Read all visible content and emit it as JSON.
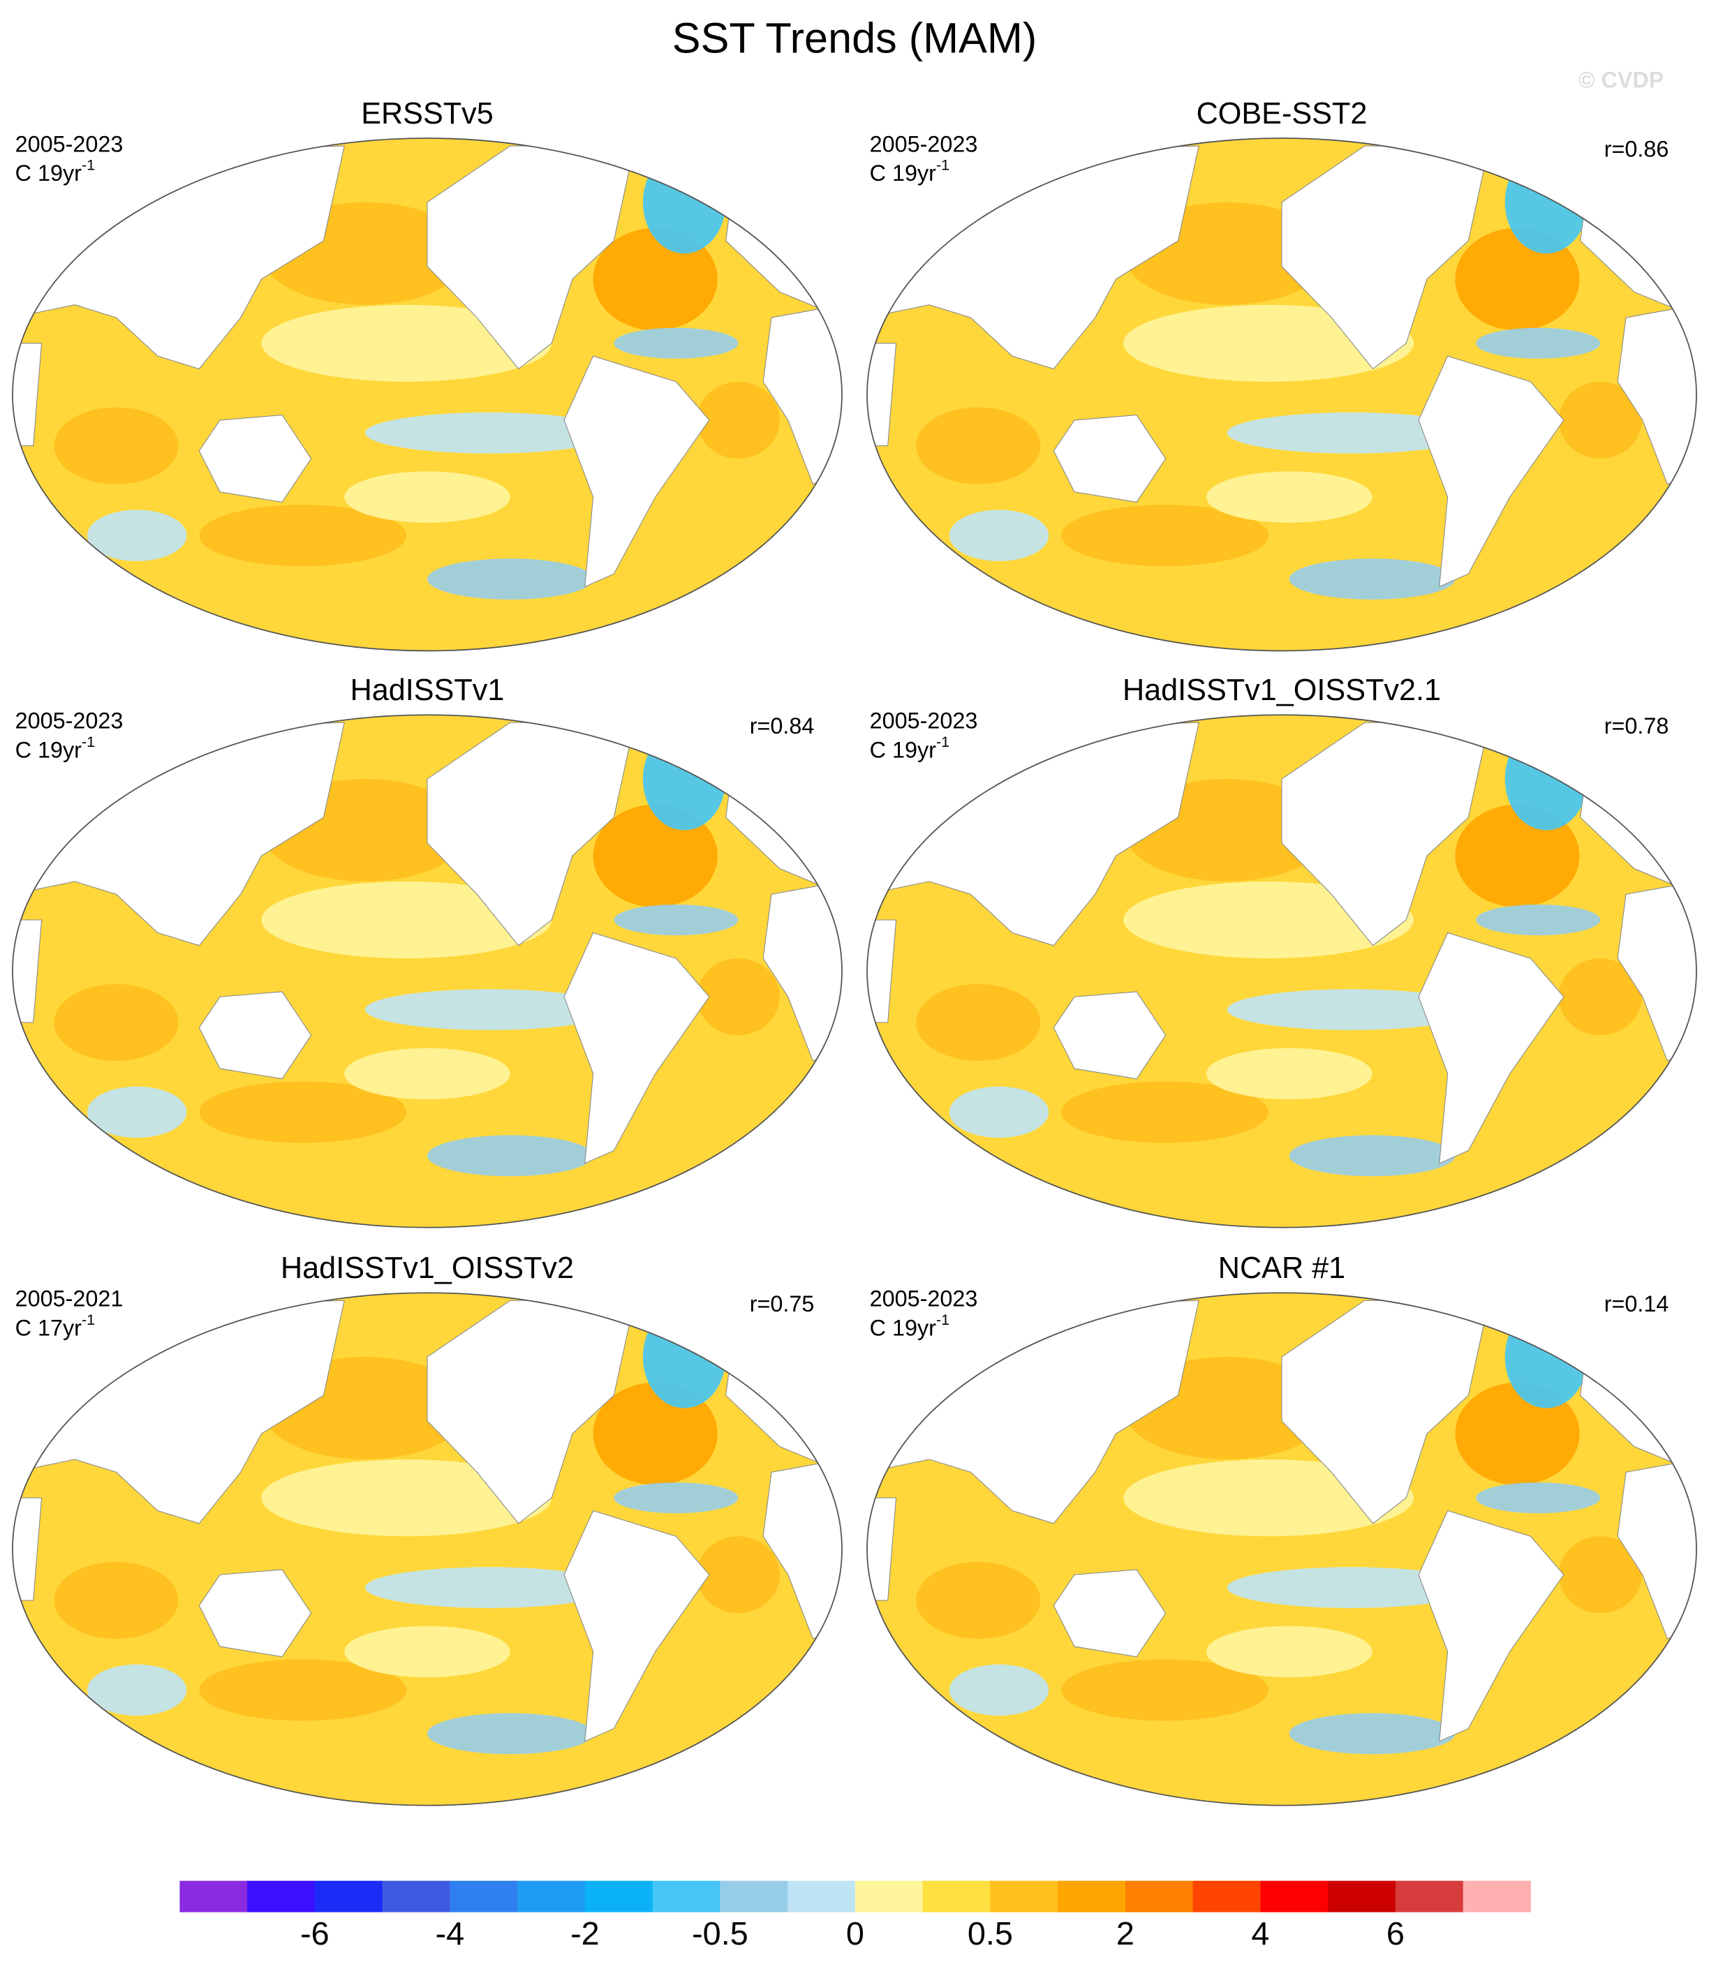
{
  "title": "SST Trends (MAM)",
  "watermark": "© CVDP",
  "panels": [
    {
      "title": "ERSSTv5",
      "period": "2005-2023",
      "units": "C 19yr",
      "units_exponent": "-1"
    },
    {
      "title": "COBE-SST2",
      "period": "2005-2023",
      "units": "C 19yr",
      "units_exponent": "-1",
      "r": "r=0.86"
    },
    {
      "title": "HadISSTv1",
      "period": "2005-2023",
      "units": "C 19yr",
      "units_exponent": "-1",
      "r": "r=0.84"
    },
    {
      "title": "HadISSTv1_OISSTv2.1",
      "period": "2005-2023",
      "units": "C 19yr",
      "units_exponent": "-1",
      "r": "r=0.78"
    },
    {
      "title": "HadISSTv1_OISSTv2",
      "period": "2005-2021",
      "units": "C 17yr",
      "units_exponent": "-1",
      "r": "r=0.75"
    },
    {
      "title": "NCAR #1",
      "period": "2005-2023",
      "units": "C 19yr",
      "units_exponent": "-1",
      "r": "r=0.14"
    }
  ],
  "colorbar": {
    "colors": [
      "#8a2be2",
      "#3a10ff",
      "#1a2cf5",
      "#3f5ae0",
      "#2f7ff0",
      "#1e9cf5",
      "#0ab2f5",
      "#45c6f7",
      "#98cdea",
      "#bfe4f5",
      "#fff59c",
      "#ffe040",
      "#ffc01e",
      "#ffa500",
      "#ff7f00",
      "#ff4500",
      "#ff0000",
      "#cc0000",
      "#d63c3c",
      "#ffb0b0"
    ],
    "labels": [
      -6,
      -4,
      -2,
      -0.5,
      0,
      0.5,
      2,
      4,
      6
    ]
  }
}
